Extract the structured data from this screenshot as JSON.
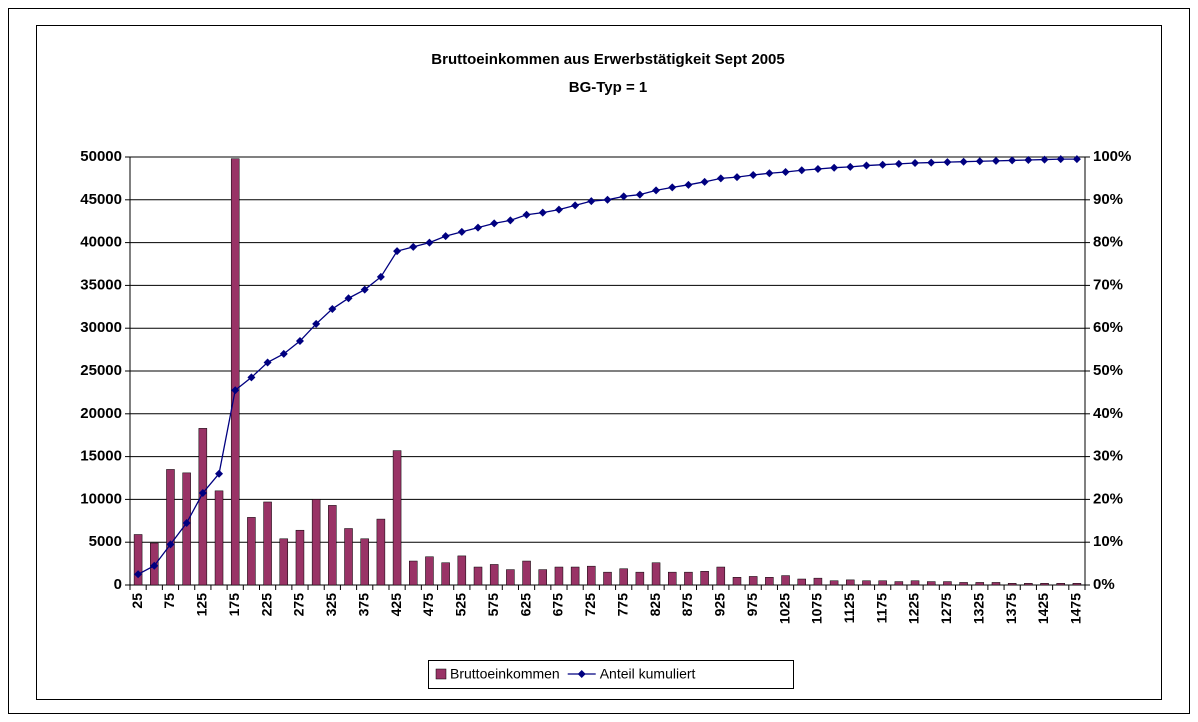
{
  "chart_data": {
    "type": "bar-line",
    "title": "Bruttoeinkommen aus Erwerbstätigkeit Sept 2005",
    "subtitle": "BG-Typ = 1",
    "categories": [
      "25",
      null,
      "75",
      null,
      "125",
      null,
      "175",
      null,
      "225",
      null,
      "275",
      null,
      "325",
      null,
      "375",
      null,
      "425",
      null,
      "475",
      null,
      "525",
      null,
      "575",
      null,
      "625",
      null,
      "675",
      null,
      "725",
      null,
      "775",
      null,
      "825",
      null,
      "875",
      null,
      "925",
      null,
      "975",
      null,
      "1025",
      null,
      "1075",
      null,
      "1125",
      null,
      "1175",
      null,
      "1225",
      null,
      "1275",
      null,
      "1325",
      null,
      "1375",
      null,
      "1425",
      null,
      "1475"
    ],
    "series": [
      {
        "name": "Bruttoeinkommen",
        "type": "bar",
        "color": "#993366",
        "values": [
          5900,
          4900,
          13500,
          13100,
          18300,
          11000,
          49800,
          7900,
          9700,
          5400,
          6400,
          10000,
          9300,
          6600,
          5400,
          7700,
          15700,
          2800,
          3300,
          2600,
          3400,
          2100,
          2400,
          1800,
          2800,
          1800,
          2100,
          2100,
          2200,
          1500,
          1900,
          1500,
          2600,
          1500,
          1500,
          1600,
          2100,
          900,
          1000,
          900,
          1100,
          700,
          800,
          500,
          600,
          500,
          500,
          400,
          500,
          400,
          400,
          300,
          300,
          300,
          200,
          200,
          200,
          200,
          200
        ]
      },
      {
        "name": "Anteil kumuliert",
        "type": "line",
        "axis": "y2",
        "color": "#000080",
        "values": [
          2.5,
          4.5,
          9.5,
          14.5,
          21.5,
          26,
          45.5,
          48.5,
          52,
          54,
          57,
          61,
          64.5,
          67,
          69,
          72,
          78,
          79,
          80,
          81.5,
          82.5,
          83.5,
          84.5,
          85.2,
          86.5,
          87,
          87.7,
          88.7,
          89.7,
          90,
          90.8,
          91.2,
          92.2,
          92.9,
          93.5,
          94.2,
          95,
          95.3,
          95.8,
          96.2,
          96.5,
          96.9,
          97.2,
          97.5,
          97.7,
          98,
          98.2,
          98.4,
          98.6,
          98.7,
          98.8,
          98.9,
          99,
          99.1,
          99.2,
          99.3,
          99.4,
          99.5,
          99.5
        ]
      }
    ],
    "ylim": [
      0,
      50000
    ],
    "yticks": [
      0,
      5000,
      10000,
      15000,
      20000,
      25000,
      30000,
      35000,
      40000,
      45000,
      50000
    ],
    "y2lim": [
      0,
      100
    ],
    "y2ticks": [
      {
        "value": 0,
        "label": "0%"
      },
      {
        "value": 10,
        "label": "10%"
      },
      {
        "value": 20,
        "label": "20%"
      },
      {
        "value": 30,
        "label": "30%"
      },
      {
        "value": 40,
        "label": "40%"
      },
      {
        "value": 50,
        "label": "50%"
      },
      {
        "value": 60,
        "label": "60%"
      },
      {
        "value": 70,
        "label": "70%"
      },
      {
        "value": 80,
        "label": "80%"
      },
      {
        "value": 90,
        "label": "90%"
      },
      {
        "value": 100,
        "label": "100%"
      }
    ],
    "grid": true,
    "legend": "bottom"
  }
}
